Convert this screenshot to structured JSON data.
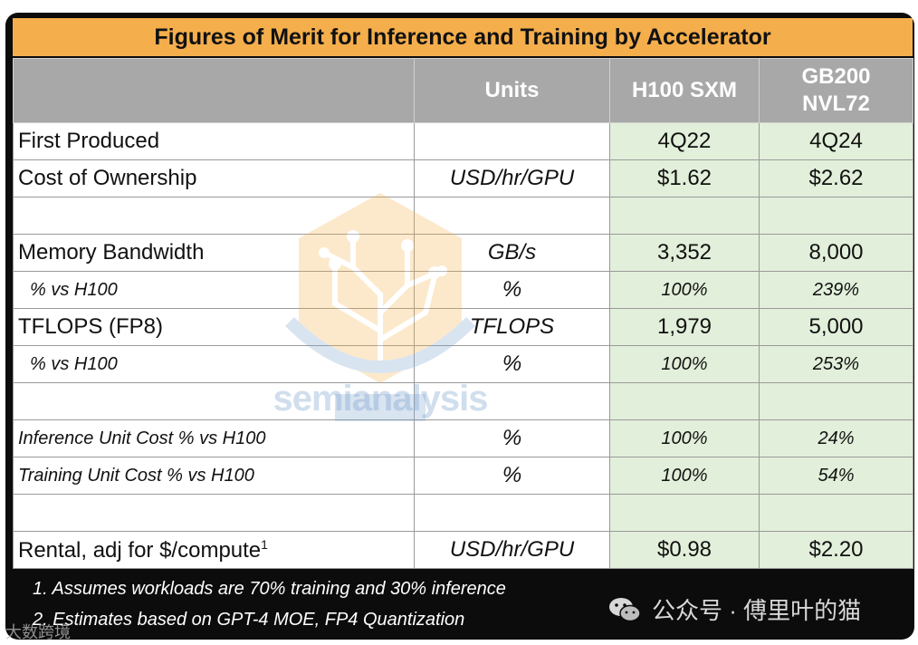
{
  "title": "Figures of Merit for Inference and Training by Accelerator",
  "columns": {
    "units": "Units",
    "h100": "H100 SXM",
    "gb200_line1": "GB200",
    "gb200_line2": "NVL72"
  },
  "rows": [
    {
      "metric": "First Produced",
      "unit": "",
      "h100": "4Q22",
      "gb200": "4Q24"
    },
    {
      "metric": "Cost of Ownership",
      "unit": "USD/hr/GPU",
      "h100": "$1.62",
      "gb200": "$2.62"
    },
    {
      "metric": "",
      "unit": "",
      "h100": "",
      "gb200": ""
    },
    {
      "metric": "Memory Bandwidth",
      "unit": "GB/s",
      "h100": "3,352",
      "gb200": "8,000"
    },
    {
      "metric": "% vs H100",
      "unit": "%",
      "h100": "100%",
      "gb200": "239%"
    },
    {
      "metric": "TFLOPS (FP8)",
      "unit": "TFLOPS",
      "h100": "1,979",
      "gb200": "5,000"
    },
    {
      "metric": "% vs H100",
      "unit": "%",
      "h100": "100%",
      "gb200": "253%"
    },
    {
      "metric": "",
      "unit": "",
      "h100": "",
      "gb200": ""
    },
    {
      "metric": "Inference Unit Cost  % vs H100",
      "unit": "%",
      "h100": "100%",
      "gb200": "24%"
    },
    {
      "metric": "Training Unit Cost  % vs H100",
      "unit": "%",
      "h100": "100%",
      "gb200": "54%"
    },
    {
      "metric": "",
      "unit": "",
      "h100": "",
      "gb200": ""
    },
    {
      "metric": "Rental, adj for $/compute",
      "metric_sup": "1",
      "unit": "USD/hr/GPU",
      "h100": "$0.98",
      "gb200": "$2.20"
    }
  ],
  "notes": [
    "1. Assumes workloads are 70% training and 30% inference",
    "2. Estimates based on GPT-4 MOE, FP4 Quantization"
  ],
  "watermark": {
    "text": "semianalysis"
  },
  "wechat_label": "公众号 · 傅里叶的猫",
  "corner_mark": "大数跨境",
  "colors": {
    "title_bg": "#f4ae4c",
    "header_bg": "#a8a8a8",
    "value_bg": "#e2efda",
    "frame": "#0c0c0c"
  }
}
